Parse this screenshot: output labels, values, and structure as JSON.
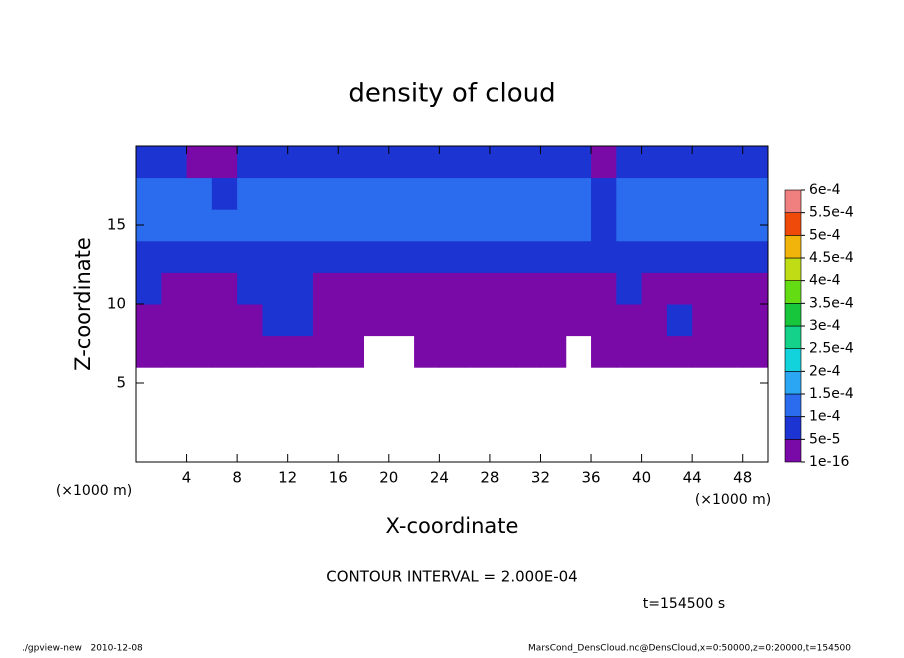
{
  "chart_data": {
    "type": "heatmap",
    "title": "density of cloud",
    "xlabel": "X-coordinate",
    "ylabel": "Z-coordinate",
    "xunit": "(×1000 m)",
    "yunit": "(×1000 m)",
    "contour_interval": "CONTOUR INTERVAL = 2.000E-04",
    "time_label": "t=154500 s",
    "footer_left": "./gpview-new   2010-12-08",
    "footer_right": "MarsCond_DensCloud.nc@DensCloud,x=0:50000,z=0:20000,t=154500",
    "xlim": [
      0,
      50
    ],
    "ylim": [
      0,
      20
    ],
    "xticks": [
      4,
      8,
      12,
      16,
      20,
      24,
      28,
      32,
      36,
      40,
      44,
      48
    ],
    "yticks": [
      5,
      10,
      15
    ],
    "xbins": [
      0,
      2,
      4,
      6,
      8,
      10,
      12,
      14,
      16,
      18,
      20,
      22,
      24,
      26,
      28,
      30,
      32,
      34,
      36,
      38,
      40,
      42,
      44,
      46,
      48,
      50
    ],
    "ybins": [
      0,
      2,
      4,
      6,
      8,
      10,
      12,
      14,
      16,
      18,
      20
    ],
    "z": [
      [
        null,
        null,
        null,
        null,
        null,
        null,
        null,
        null,
        null,
        null,
        null,
        null,
        null,
        null,
        null,
        null,
        null,
        null,
        null,
        null,
        null,
        null,
        null,
        null,
        null
      ],
      [
        null,
        null,
        null,
        null,
        null,
        null,
        null,
        null,
        null,
        null,
        null,
        null,
        null,
        null,
        null,
        null,
        null,
        null,
        null,
        null,
        null,
        null,
        null,
        null,
        null
      ],
      [
        null,
        null,
        null,
        null,
        null,
        null,
        null,
        null,
        null,
        null,
        null,
        null,
        null,
        null,
        null,
        null,
        null,
        null,
        null,
        null,
        null,
        null,
        null,
        null,
        null
      ],
      [
        3e-05,
        3e-05,
        3e-05,
        3e-05,
        3e-05,
        3e-05,
        3e-05,
        3e-05,
        3e-05,
        null,
        null,
        3e-05,
        3e-05,
        3e-05,
        3e-05,
        3e-05,
        3e-05,
        null,
        3e-05,
        3e-05,
        3e-05,
        3e-05,
        3e-05,
        3e-05,
        3e-05
      ],
      [
        3e-05,
        3e-05,
        3e-05,
        3e-05,
        3e-05,
        8e-05,
        8e-05,
        3e-05,
        3e-05,
        3e-05,
        3e-05,
        3e-05,
        3e-05,
        3e-05,
        3e-05,
        3e-05,
        3e-05,
        3e-05,
        3e-05,
        3e-05,
        3e-05,
        8e-05,
        3e-05,
        3e-05,
        3e-05
      ],
      [
        8e-05,
        3e-05,
        3e-05,
        3e-05,
        8e-05,
        8e-05,
        8e-05,
        3e-05,
        3e-05,
        3e-05,
        3e-05,
        3e-05,
        3e-05,
        3e-05,
        3e-05,
        3e-05,
        3e-05,
        3e-05,
        3e-05,
        8e-05,
        3e-05,
        3e-05,
        3e-05,
        3e-05,
        3e-05
      ],
      [
        8e-05,
        8e-05,
        8e-05,
        8e-05,
        8e-05,
        8e-05,
        8e-05,
        8e-05,
        8e-05,
        8e-05,
        8e-05,
        8e-05,
        8e-05,
        8e-05,
        8e-05,
        8e-05,
        8e-05,
        8e-05,
        8e-05,
        8e-05,
        8e-05,
        8e-05,
        8e-05,
        8e-05,
        8e-05
      ],
      [
        0.00012,
        0.00012,
        0.00012,
        0.00012,
        0.00012,
        0.00012,
        0.00012,
        0.00012,
        0.00012,
        0.00012,
        0.00012,
        0.00012,
        0.00012,
        0.00012,
        0.00012,
        0.00012,
        0.00012,
        0.00012,
        8e-05,
        0.00012,
        0.00012,
        0.00012,
        0.00012,
        0.00012,
        0.00012
      ],
      [
        0.00012,
        0.00012,
        0.00012,
        8e-05,
        0.00012,
        0.00012,
        0.00012,
        0.00012,
        0.00012,
        0.00012,
        0.00012,
        0.00012,
        0.00012,
        0.00012,
        0.00012,
        0.00012,
        0.00012,
        0.00012,
        8e-05,
        0.00012,
        0.00012,
        0.00012,
        0.00012,
        0.00012,
        0.00012
      ],
      [
        8e-05,
        8e-05,
        3e-05,
        3e-05,
        8e-05,
        8e-05,
        8e-05,
        8e-05,
        8e-05,
        8e-05,
        8e-05,
        8e-05,
        8e-05,
        8e-05,
        8e-05,
        8e-05,
        8e-05,
        8e-05,
        3e-05,
        8e-05,
        8e-05,
        8e-05,
        8e-05,
        8e-05,
        8e-05
      ]
    ],
    "levels": [
      {
        "value": 1e-16,
        "label": "1e-16"
      },
      {
        "value": 5e-05,
        "label": "5e-5"
      },
      {
        "value": 0.0001,
        "label": "1e-4"
      },
      {
        "value": 0.00015,
        "label": "1.5e-4"
      },
      {
        "value": 0.0002,
        "label": "2e-4"
      },
      {
        "value": 0.00025,
        "label": "2.5e-4"
      },
      {
        "value": 0.0003,
        "label": "3e-4"
      },
      {
        "value": 0.00035,
        "label": "3.5e-4"
      },
      {
        "value": 0.0004,
        "label": "4e-4"
      },
      {
        "value": 0.00045,
        "label": "4.5e-4"
      },
      {
        "value": 0.0005,
        "label": "5e-4"
      },
      {
        "value": 0.00055,
        "label": "5.5e-4"
      },
      {
        "value": 0.0006,
        "label": "6e-4"
      }
    ],
    "colors": [
      "#7a0aa8",
      "#1c34d2",
      "#2b6cee",
      "#2aa6f2",
      "#12d2dc",
      "#14d28a",
      "#18c63c",
      "#64dc14",
      "#c0dc14",
      "#f0b40a",
      "#f04a0a",
      "#f08080"
    ]
  }
}
